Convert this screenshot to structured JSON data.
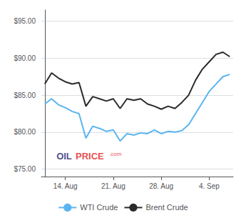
{
  "chart_data": {
    "type": "line",
    "x": [
      0,
      1,
      2,
      3,
      4,
      5,
      6,
      7,
      8,
      9,
      10,
      11,
      12,
      13,
      14,
      15,
      16,
      17,
      18,
      19,
      20,
      21,
      22,
      23,
      24,
      25,
      26,
      27
    ],
    "series": [
      {
        "name": "WTI Crude",
        "color": "#5ab4f0",
        "values": [
          83.8,
          84.5,
          83.7,
          83.3,
          82.8,
          82.5,
          79.2,
          80.8,
          80.5,
          80.1,
          80.3,
          78.8,
          79.8,
          79.6,
          79.9,
          79.8,
          80.3,
          79.8,
          80.1,
          80.0,
          80.2,
          81.0,
          82.5,
          84.0,
          85.5,
          86.5,
          87.5,
          87.8
        ]
      },
      {
        "name": "Brent Crude",
        "color": "#2a2a2a",
        "values": [
          86.5,
          88.0,
          87.3,
          86.8,
          86.5,
          86.7,
          83.5,
          84.8,
          84.5,
          84.2,
          84.5,
          83.2,
          84.5,
          84.3,
          84.5,
          83.8,
          83.5,
          83.1,
          83.5,
          83.2,
          84.0,
          85.0,
          87.0,
          88.5,
          89.5,
          90.5,
          90.8,
          90.2
        ]
      }
    ],
    "xlim": [
      -0.5,
      27.5
    ],
    "xticks": [
      {
        "value": 3,
        "label": "14. Aug"
      },
      {
        "value": 10,
        "label": "21. Aug"
      },
      {
        "value": 17,
        "label": "28. Aug"
      },
      {
        "value": 24,
        "label": "4. Sep"
      }
    ],
    "ylim": [
      74.0,
      96.5
    ],
    "yticks": [
      {
        "value": 75,
        "label": "$75.00"
      },
      {
        "value": 80,
        "label": "$80.00"
      },
      {
        "value": 85,
        "label": "$85.00"
      },
      {
        "value": 90,
        "label": "$90.00"
      },
      {
        "value": 95,
        "label": "$95.00"
      }
    ],
    "grid": true,
    "legend": "bottom",
    "annotations": [
      {
        "text": "OIL",
        "x": 1.7,
        "y": 76.75,
        "color": "#1a1a70"
      },
      {
        "text": "PRICE",
        "x": 4.5,
        "y": 76.75,
        "color": "#e02020"
      },
      {
        "text": ".com",
        "x": 9.4,
        "y": 77.05,
        "color": "#e02020"
      }
    ]
  }
}
